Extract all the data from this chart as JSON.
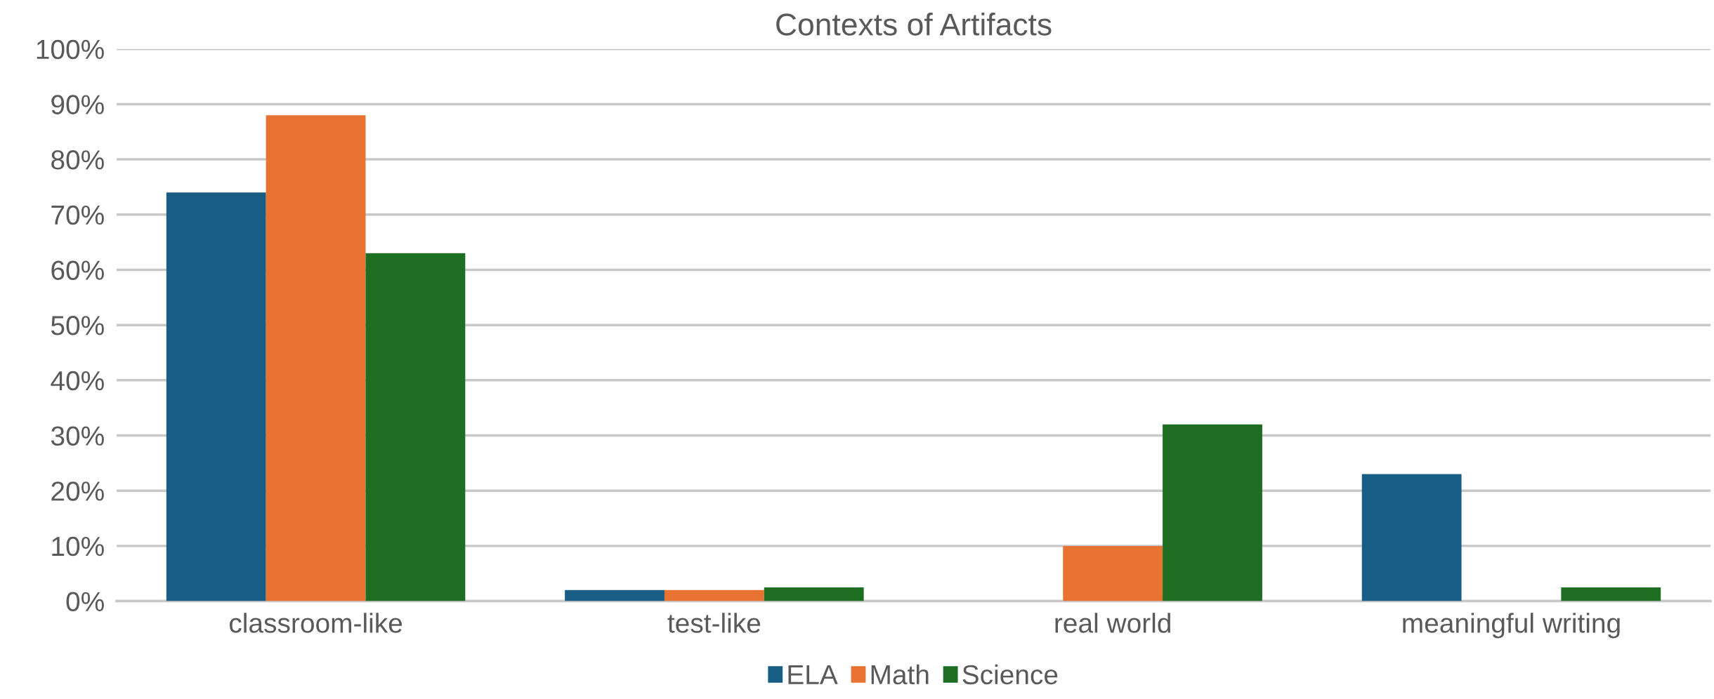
{
  "chart_data": {
    "type": "bar",
    "title": "Contexts of Artifacts",
    "categories": [
      "classroom-like",
      "test-like",
      "real world",
      "meaningful writing"
    ],
    "series": [
      {
        "name": "ELA",
        "color": "#185e84",
        "values": [
          74,
          2,
          0,
          23
        ]
      },
      {
        "name": "Math",
        "color": "#e87232",
        "values": [
          88,
          2,
          10,
          0
        ]
      },
      {
        "name": "Science",
        "color": "#1d6d23",
        "values": [
          63,
          2.5,
          32,
          2.5
        ]
      }
    ],
    "ylim": [
      0,
      100
    ],
    "yticks": [
      {
        "value": 0,
        "label": "0%"
      },
      {
        "value": 10,
        "label": "10%"
      },
      {
        "value": 20,
        "label": "20%"
      },
      {
        "value": 30,
        "label": "30%"
      },
      {
        "value": 40,
        "label": "40%"
      },
      {
        "value": 50,
        "label": "50%"
      },
      {
        "value": 60,
        "label": "60%"
      },
      {
        "value": 70,
        "label": "70%"
      },
      {
        "value": 80,
        "label": "80%"
      },
      {
        "value": 90,
        "label": "90%"
      },
      {
        "value": 100,
        "label": "100%"
      }
    ],
    "grid": "y",
    "legend": "bottom"
  }
}
